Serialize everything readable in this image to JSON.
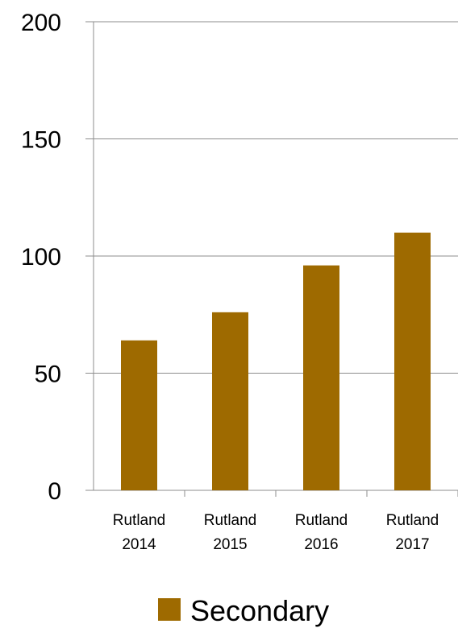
{
  "chart_data": {
    "type": "bar",
    "categories": [
      [
        "Rutland",
        "2014"
      ],
      [
        "Rutland",
        "2015"
      ],
      [
        "Rutland",
        "2016"
      ],
      [
        "Rutland",
        "2017"
      ]
    ],
    "series": [
      {
        "name": "Secondary",
        "values": [
          64,
          76,
          96,
          110
        ],
        "color": "#9E6A00"
      }
    ],
    "y_ticks": [
      "0",
      "50",
      "100",
      "150",
      "200"
    ],
    "ylim": [
      0,
      200
    ],
    "grid": true,
    "legend": "bottom",
    "title": "",
    "xlabel": "",
    "ylabel": ""
  }
}
